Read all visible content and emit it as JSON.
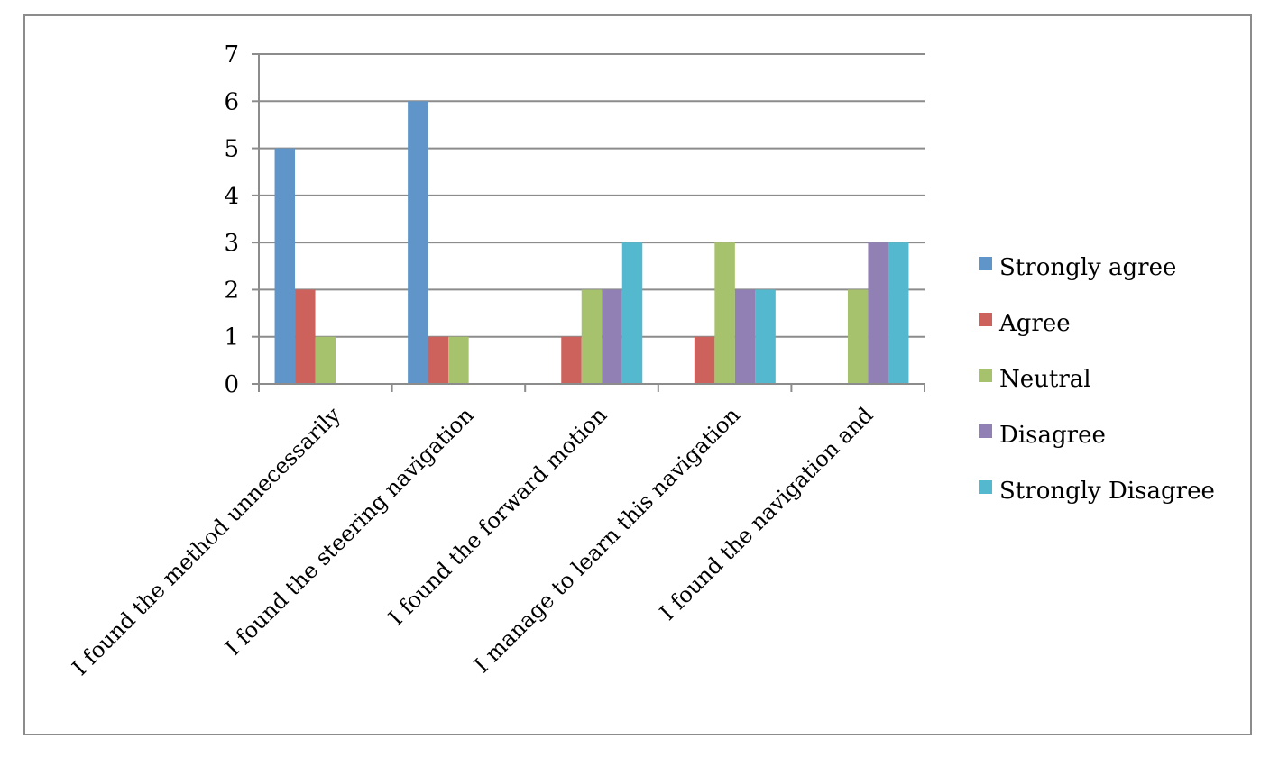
{
  "chart_data": {
    "type": "bar",
    "title": "",
    "xlabel": "",
    "ylabel": "",
    "ylim": [
      0,
      7
    ],
    "yticks": [
      0,
      1,
      2,
      3,
      4,
      5,
      6,
      7
    ],
    "grid": true,
    "legend_position": "right",
    "categories": [
      "I found the method unnecessarily",
      "I found the steering navigation",
      "I found the forward motion",
      "I manage to learn this navigation",
      "I found the navigation and"
    ],
    "series": [
      {
        "name": "Strongly agree",
        "color": "#5f95c8",
        "values": [
          5,
          6,
          0,
          0,
          0
        ]
      },
      {
        "name": "Agree",
        "color": "#cd625d",
        "values": [
          2,
          1,
          1,
          1,
          0
        ]
      },
      {
        "name": "Neutral",
        "color": "#a7c26c",
        "values": [
          1,
          1,
          2,
          3,
          2
        ]
      },
      {
        "name": "Disagree",
        "color": "#9080b3",
        "values": [
          0,
          0,
          2,
          2,
          3
        ]
      },
      {
        "name": "Strongly Disagree",
        "color": "#54b9ce",
        "values": [
          0,
          0,
          3,
          2,
          3
        ]
      }
    ]
  }
}
